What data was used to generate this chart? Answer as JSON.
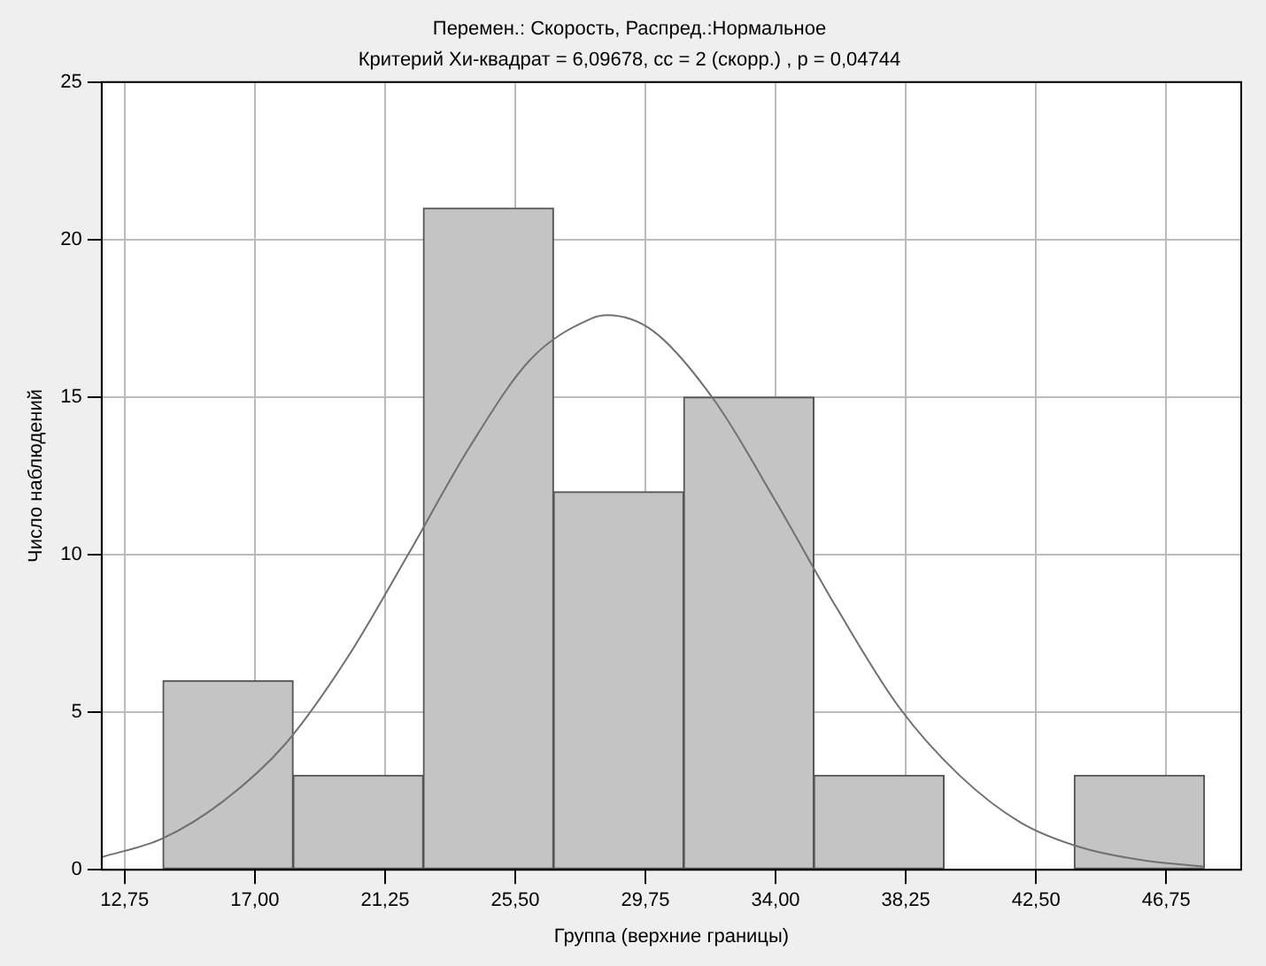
{
  "chart_data": {
    "type": "histogram",
    "title": "Перемен.: Скорость, Распред.:Нормальное",
    "subtitle": "Критерий Хи-квадрат = 6,09678, сс = 2 (скорр.) , p = 0,04744",
    "xlabel": "Группа (верхние границы)",
    "ylabel": "Число наблюдений",
    "bins": [
      14.0,
      18.25,
      22.5,
      26.75,
      31.0,
      35.25,
      39.5,
      43.75,
      48.0
    ],
    "values": [
      6,
      3,
      21,
      12,
      15,
      3,
      0,
      3
    ],
    "color": "#c4c4c4",
    "series": [
      {
        "type": "line",
        "color": "#707070",
        "x": [
          12,
          14,
          16,
          18,
          20,
          22,
          24,
          26,
          28,
          28.5,
          30,
          32,
          34,
          36,
          38,
          40,
          42,
          44,
          46,
          48
        ],
        "values": [
          0.4,
          1.0,
          2.2,
          4.0,
          6.7,
          10.0,
          13.4,
          16.2,
          17.5,
          17.6,
          17.1,
          14.9,
          11.7,
          8.3,
          5.2,
          3.0,
          1.5,
          0.7,
          0.3,
          0.1
        ]
      }
    ],
    "xlim": [
      12,
      49.2
    ],
    "ylim": [
      0,
      25
    ],
    "xticks": [
      {
        "value": 12.75,
        "label": "12,75"
      },
      {
        "value": 17,
        "label": "17,00"
      },
      {
        "value": 21.25,
        "label": "21,25"
      },
      {
        "value": 25.5,
        "label": "25,50"
      },
      {
        "value": 29.75,
        "label": "29,75"
      },
      {
        "value": 34,
        "label": "34,00"
      },
      {
        "value": 38.25,
        "label": "38,25"
      },
      {
        "value": 42.5,
        "label": "42,50"
      },
      {
        "value": 46.75,
        "label": "46,75"
      }
    ],
    "yticks": [
      0,
      5,
      10,
      15,
      20,
      25
    ],
    "grid": true,
    "legend": false,
    "marker": "none",
    "line_style": "solid"
  }
}
